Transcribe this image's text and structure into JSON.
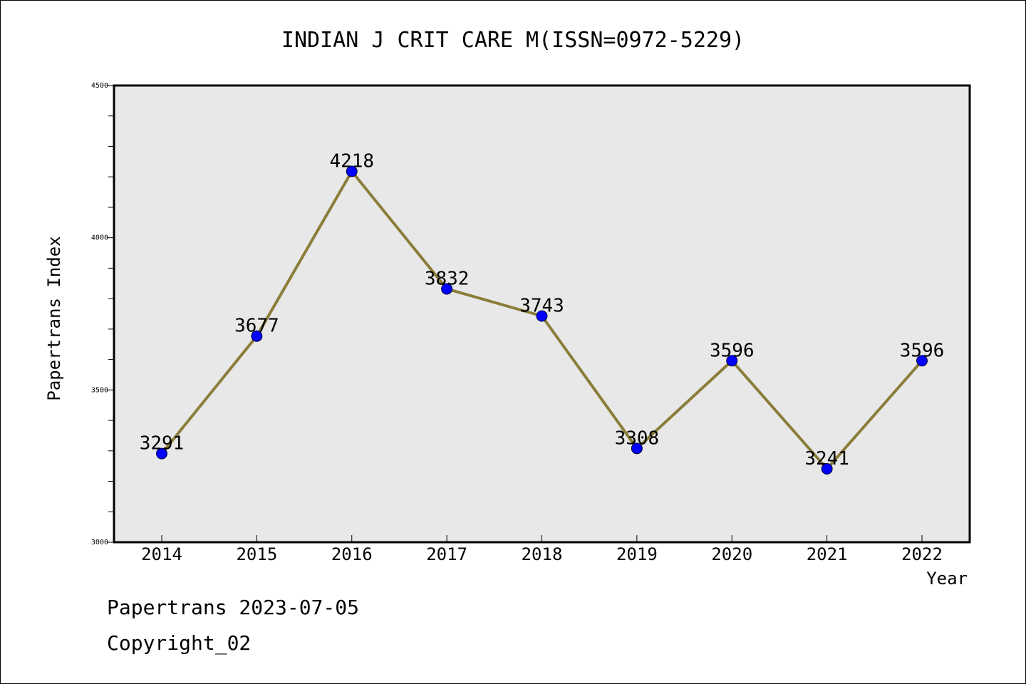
{
  "footer": {
    "source_line": "Papertrans 2023-07-05",
    "copyright_line": "Copyright_02"
  },
  "chart_data": {
    "type": "line",
    "title": "INDIAN J CRIT CARE M(ISSN=0972-5229)",
    "xlabel": "Year",
    "ylabel": "Papertrans Index",
    "categories": [
      "2014",
      "2015",
      "2016",
      "2017",
      "2018",
      "2019",
      "2020",
      "2021",
      "2022"
    ],
    "series": [
      {
        "values": [
          3291,
          3677,
          4218,
          3832,
          3743,
          3308,
          3596,
          3241,
          3596
        ],
        "data_labels": [
          "3291",
          "3677",
          "4218",
          "3832",
          "3743",
          "3308",
          "3596",
          "3241",
          "3596"
        ]
      }
    ],
    "ylim": [
      3000,
      4500
    ],
    "yticks": [
      3000,
      3500,
      4000,
      4500
    ],
    "ytick_labels": [
      "3000",
      "3500",
      "4000",
      "4500"
    ],
    "y_minor_step": 100,
    "grid": false,
    "colors": {
      "line": "#8B7D3A",
      "marker": "#0000FF",
      "plot_background": "#E8E8E8",
      "axes": "#000000"
    }
  }
}
